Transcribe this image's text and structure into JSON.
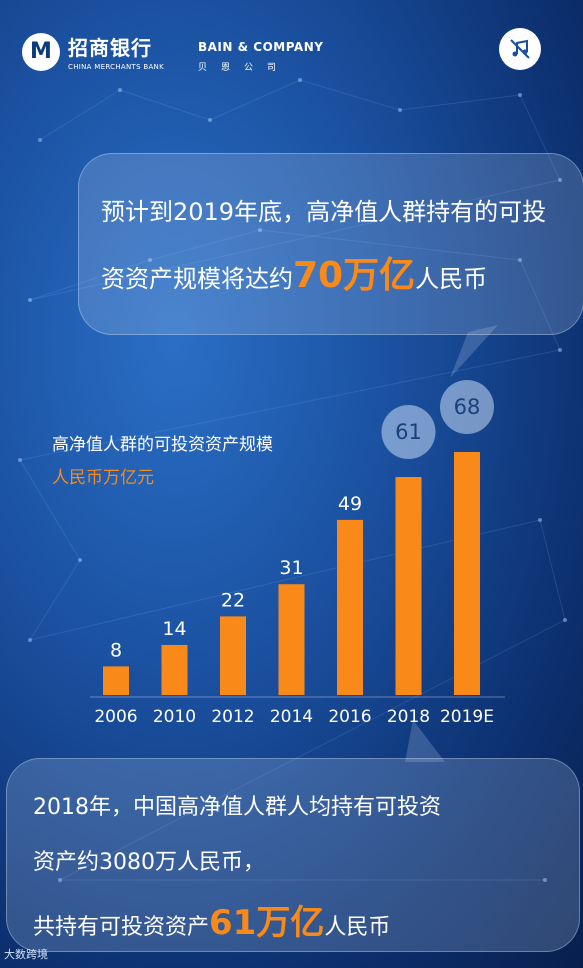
{
  "header": {
    "cmb_logo_mark": "M",
    "cmb_name_cn": "招商银行",
    "cmb_name_en": "CHINA MERCHANTS BANK",
    "bain_name_en": "BAIN & COMPANY",
    "bain_name_cn": "贝恩公司",
    "music_icon": "music-off-icon"
  },
  "top_bubble": {
    "line1": "预计到2019年底，高净值人群持有的可投",
    "line2_prefix": "资资产规模将达约",
    "line2_highlight": "70万亿",
    "line2_suffix": "人民币"
  },
  "chart_data": {
    "type": "bar",
    "title": "高净值人群的可投资资产规模",
    "unit": "人民币万亿元",
    "categories": [
      "2006",
      "2010",
      "2012",
      "2014",
      "2016",
      "2018",
      "2019E"
    ],
    "values": [
      8,
      14,
      22,
      31,
      49,
      61,
      68
    ],
    "ylim": [
      0,
      68
    ],
    "highlighted_categories": [
      "2018",
      "2019E"
    ],
    "bar_color": "#f98a1a"
  },
  "bottom_bubble": {
    "line1": "2018年，中国高净值人群人均持有可投资",
    "line2": "资产约3080万人民币，",
    "line3_prefix": "共持有可投资资产",
    "line3_highlight": "61万亿",
    "line3_suffix": "人民币"
  },
  "footer": {
    "watermark": "大数跨境"
  },
  "colors": {
    "accent": "#f98a1a",
    "background": "#1a4f9e"
  }
}
